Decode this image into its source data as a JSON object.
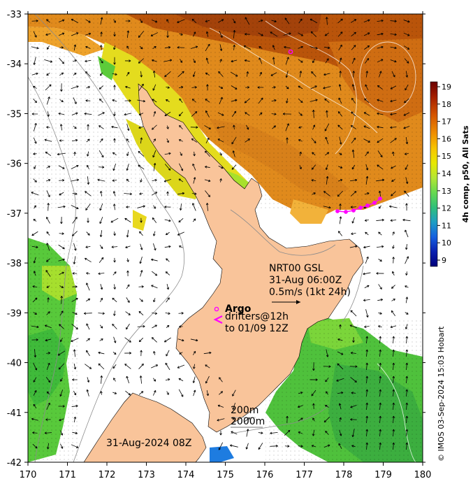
{
  "map": {
    "lon_ticks": [
      "170",
      "171",
      "172",
      "173",
      "174",
      "175",
      "176",
      "177",
      "178",
      "179",
      "180"
    ],
    "lat_ticks": [
      "-33",
      "-34",
      "-35",
      "-36",
      "-37",
      "-38",
      "-39",
      "-40",
      "-41",
      "-42"
    ],
    "lon_range": [
      170,
      180
    ],
    "lat_range": [
      -42,
      -33
    ]
  },
  "colorbar": {
    "label": "4h comp, p50, All Sats",
    "ticks": [
      "19",
      "18",
      "17",
      "16",
      "15",
      "14",
      "13",
      "12",
      "11",
      "10",
      "9"
    ],
    "colors": [
      "#6b0000",
      "#a31e00",
      "#d45500",
      "#ef8f00",
      "#f7c400",
      "#e8e800",
      "#b4e635",
      "#66d950",
      "#2fc07a",
      "#1e9ec4",
      "#1560e0",
      "#0a20b0",
      "#00007a"
    ]
  },
  "annotations": {
    "source": "NRT00 GSL",
    "datetime": "31-Aug 06:00Z",
    "vector_scale": "0.5m/s (1kt 24h)",
    "argo": "Argo",
    "drifters": "drifters@12h",
    "drifters_to": "to 01/09 12Z",
    "contour_200": "200m",
    "contour_2000": "2000m",
    "date_stamp": "31-Aug-2024 08Z",
    "credit": "© IMOS 03-Sep-2024 15:03 Hobart"
  },
  "colors": {
    "land": "#f9c49a",
    "warm": "#d9761a",
    "hot": "#b24a08",
    "yellow": "#e3da1c",
    "green": "#5fcf3a",
    "argo": "#ff00ff"
  }
}
